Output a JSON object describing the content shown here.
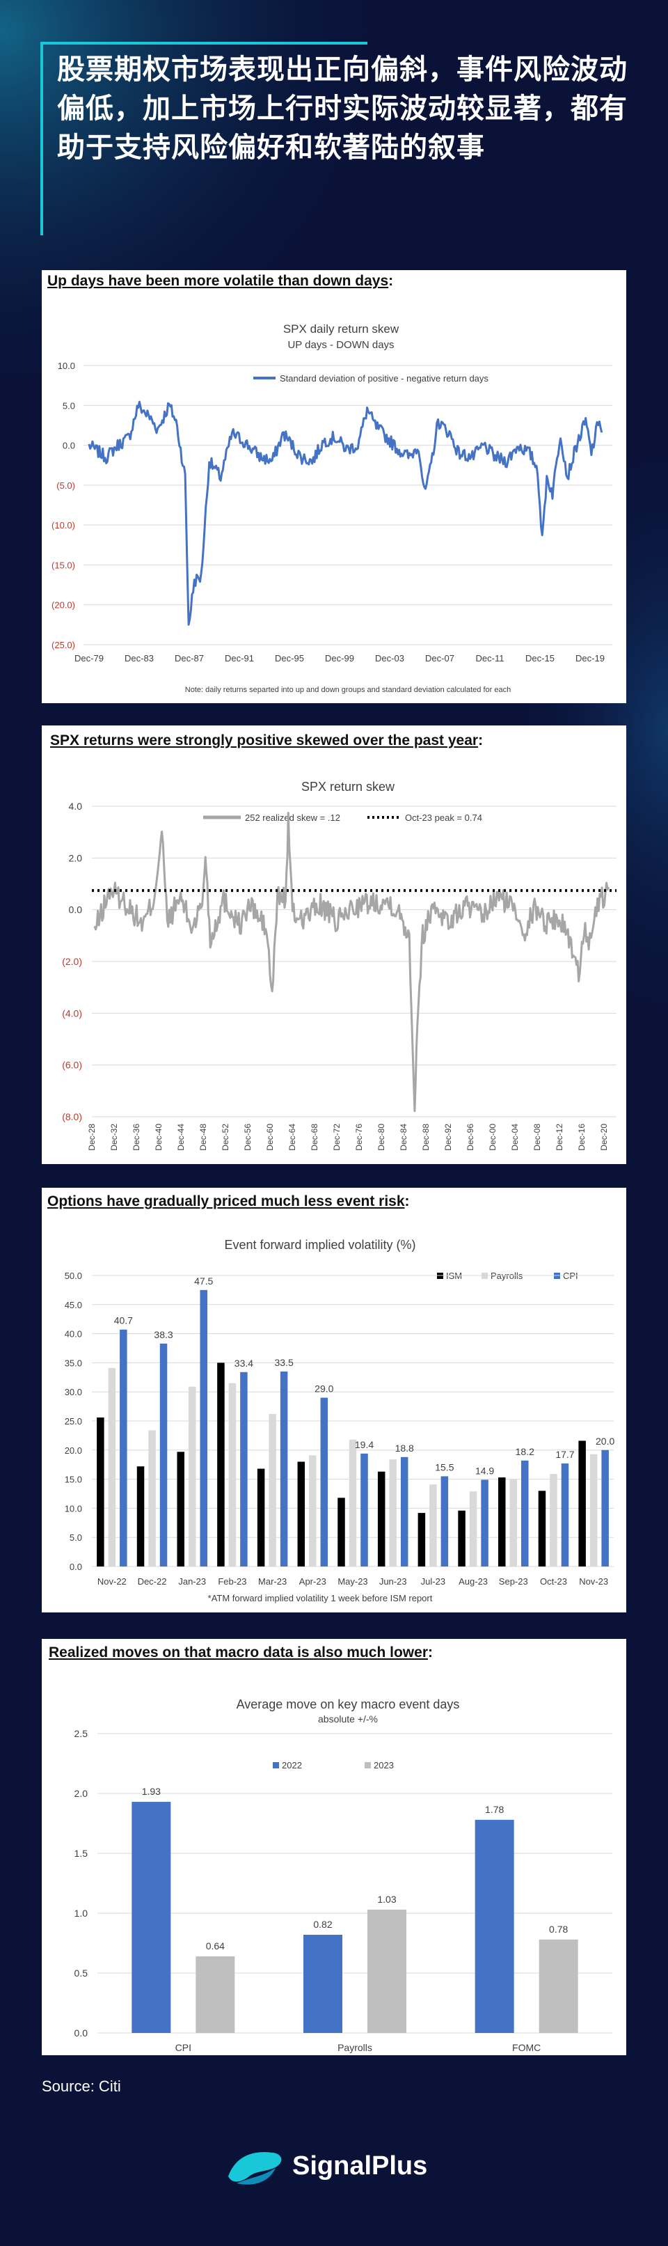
{
  "headline": "股票期权市场表现出正向偏斜，事件风险波动偏低，加上市场上行时实际波动较显著，都有助于支持风险偏好和软著陆的叙事",
  "panels": [
    {
      "title_underlined": "Up days have been more volatile than down days",
      "title_suffix": ":",
      "chart": {
        "type": "line",
        "title": "SPX daily return skew",
        "subtitle": "UP days - DOWN days",
        "legend": "Standard deviation of positive - negative return days",
        "note": "Note: daily returns separted into up and down groups and standard deviation calculated for each",
        "ylim": [
          -25,
          10
        ],
        "yticks": [
          "10.0",
          "5.0",
          "0.0",
          "(5.0)",
          "(10.0)",
          "(15.0)",
          "(20.0)",
          "(25.0)"
        ],
        "xticks": [
          "Dec-79",
          "Dec-83",
          "Dec-87",
          "Dec-91",
          "Dec-95",
          "Dec-99",
          "Dec-03",
          "Dec-07",
          "Dec-11",
          "Dec-15",
          "Dec-19"
        ],
        "color": "#4472c4"
      }
    },
    {
      "title_underlined": "SPX returns were strongly positive skewed over the past year",
      "title_suffix": ":",
      "chart": {
        "type": "line",
        "title": "SPX return skew",
        "legend_series": "252 realized skew = .12",
        "legend_ref": "Oct-23 peak = 0.74",
        "ref_value": 0.74,
        "ylim": [
          -8,
          4
        ],
        "yticks": [
          "4.0",
          "2.0",
          "0.0",
          "(2.0)",
          "(4.0)",
          "(6.0)",
          "(8.0)"
        ],
        "xticks": [
          "Dec-28",
          "Dec-32",
          "Dec-36",
          "Dec-40",
          "Dec-44",
          "Dec-48",
          "Dec-52",
          "Dec-56",
          "Dec-60",
          "Dec-64",
          "Dec-68",
          "Dec-72",
          "Dec-76",
          "Dec-80",
          "Dec-84",
          "Dec-88",
          "Dec-92",
          "Dec-96",
          "Dec-00",
          "Dec-04",
          "Dec-08",
          "Dec-12",
          "Dec-16",
          "Dec-20"
        ],
        "color": "#a6a6a6"
      }
    },
    {
      "title_underlined": "Options have gradually priced much less event risk",
      "title_suffix": ":",
      "chart": {
        "type": "bar",
        "title": "Event forward implied volatility (%)",
        "note": "*ATM forward implied volatility 1 week before ISM report",
        "ylim": [
          0,
          50
        ],
        "yticks": [
          "0.0",
          "5.0",
          "10.0",
          "15.0",
          "20.0",
          "25.0",
          "30.0",
          "35.0",
          "40.0",
          "45.0",
          "50.0"
        ],
        "categories": [
          "Nov-22",
          "Dec-22",
          "Jan-23",
          "Feb-23",
          "Mar-23",
          "Apr-23",
          "May-23",
          "Jun-23",
          "Jul-23",
          "Aug-23",
          "Sep-23",
          "Oct-23",
          "Nov-23"
        ],
        "series": [
          {
            "name": "ISM",
            "color": "#000000",
            "values": [
              25.6,
              17.2,
              19.7,
              35.0,
              16.8,
              18.0,
              11.8,
              16.3,
              9.2,
              9.6,
              15.3,
              13.0,
              21.6
            ]
          },
          {
            "name": "Payrolls",
            "color": "#d9d9d9",
            "values": [
              34.1,
              23.4,
              30.9,
              31.5,
              26.2,
              19.1,
              21.8,
              18.4,
              14.1,
              12.9,
              15.0,
              15.9,
              19.3
            ]
          },
          {
            "name": "CPI",
            "color": "#4472c4",
            "values": [
              40.7,
              38.3,
              47.5,
              33.4,
              33.5,
              29.0,
              19.4,
              18.8,
              15.5,
              14.9,
              18.2,
              17.7,
              20.0
            ]
          }
        ],
        "cpi_labels": [
          "40.7",
          "38.3",
          "47.5",
          "33.4",
          "33.5",
          "29.0",
          "19.4",
          "18.8",
          "15.5",
          "14.9",
          "18.2",
          "17.7",
          "20.0"
        ]
      }
    },
    {
      "title_underlined": "Realized moves on that macro data is also much lower",
      "title_suffix": ":",
      "chart": {
        "type": "bar",
        "title": "Average move on key macro event days",
        "subtitle": "absolute +/-%",
        "ylim": [
          0,
          2.5
        ],
        "yticks": [
          "0.0",
          "0.5",
          "1.0",
          "1.5",
          "2.0",
          "2.5"
        ],
        "categories": [
          "CPI",
          "Payrolls",
          "FOMC"
        ],
        "series": [
          {
            "name": "2022",
            "color": "#4472c4",
            "values": [
              1.93,
              0.82,
              1.78
            ],
            "labels": [
              "1.93",
              "0.82",
              "1.78"
            ]
          },
          {
            "name": "2023",
            "color": "#bfbfbf",
            "values": [
              0.64,
              1.03,
              0.78
            ],
            "labels": [
              "0.64",
              "1.03",
              "0.78"
            ]
          }
        ]
      }
    }
  ],
  "source": "Source: Citi",
  "brand": {
    "name": "SignalPlus",
    "accent": "#18c8d8"
  }
}
